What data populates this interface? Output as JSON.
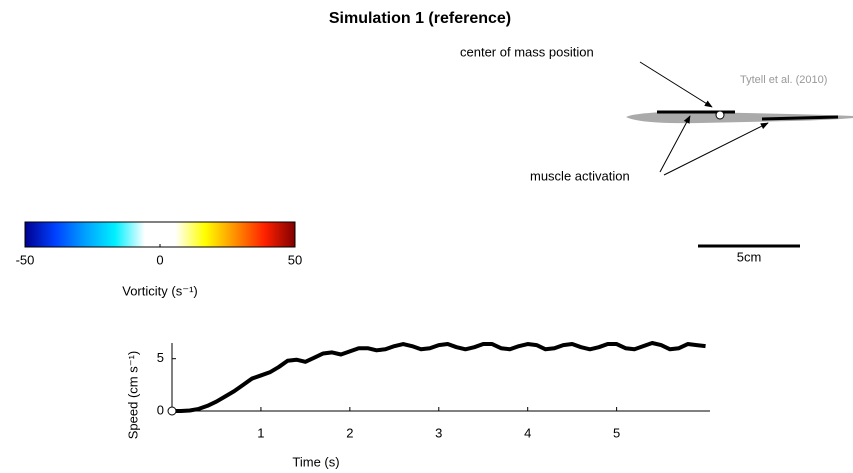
{
  "chart_data": {
    "type": "line",
    "title": "Simulation 1 (reference)",
    "x_label": "Time (s)",
    "y_label": "Speed (cm s⁻¹)",
    "x": [
      0,
      0.1,
      0.2,
      0.3,
      0.4,
      0.5,
      0.6,
      0.7,
      0.8,
      0.9,
      1.0,
      1.1,
      1.2,
      1.3,
      1.4,
      1.5,
      1.6,
      1.7,
      1.8,
      1.9,
      2.0,
      2.1,
      2.2,
      2.3,
      2.4,
      2.5,
      2.6,
      2.7,
      2.8,
      2.9,
      3.0,
      3.1,
      3.2,
      3.3,
      3.4,
      3.5,
      3.6,
      3.7,
      3.8,
      3.9,
      4.0,
      4.1,
      4.2,
      4.3,
      4.4,
      4.5,
      4.6,
      4.7,
      4.8,
      4.9,
      5.0,
      5.1,
      5.2,
      5.3,
      5.4,
      5.5,
      5.6,
      5.7,
      5.8,
      5.9,
      6.0
    ],
    "values": [
      0,
      0,
      0.05,
      0.2,
      0.5,
      0.9,
      1.4,
      1.9,
      2.5,
      3.1,
      3.4,
      3.7,
      4.2,
      4.8,
      4.9,
      4.7,
      5.1,
      5.5,
      5.6,
      5.4,
      5.7,
      6.0,
      6.0,
      5.8,
      5.9,
      6.2,
      6.4,
      6.2,
      5.9,
      6.0,
      6.3,
      6.4,
      6.1,
      5.9,
      6.1,
      6.4,
      6.4,
      6.0,
      5.9,
      6.2,
      6.4,
      6.3,
      5.9,
      6.0,
      6.3,
      6.4,
      6.1,
      5.9,
      6.1,
      6.4,
      6.4,
      6.0,
      5.9,
      6.2,
      6.5,
      6.3,
      5.9,
      6.0,
      6.4,
      6.3,
      6.2
    ],
    "color": "#000000",
    "xlim": [
      0,
      6.05
    ],
    "xticks": [
      1,
      2,
      3,
      4,
      5
    ],
    "ylim": [
      0,
      6.5
    ],
    "yticks": [
      0,
      5
    ],
    "grid": false
  },
  "colorbar": {
    "label": "Vorticity (s⁻¹)",
    "lim": [
      -50,
      50
    ],
    "ticks": [
      -50,
      0,
      50
    ],
    "colors": [
      "#00008f",
      "#0040ff",
      "#00a0ff",
      "#00f0ff",
      "#ffffff",
      "#ffffff",
      "#ffff00",
      "#ff9000",
      "#ff2000",
      "#800000"
    ]
  },
  "annotations": {
    "center_of_mass": "center of mass position",
    "muscle": "muscle activation",
    "source": "Tytell et al. (2010)",
    "scale": "5cm"
  }
}
